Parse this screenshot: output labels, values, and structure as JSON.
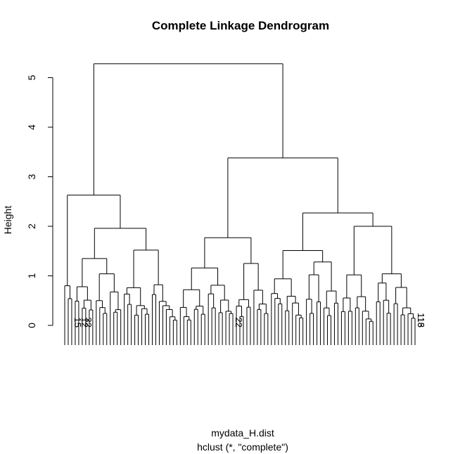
{
  "chart_data": {
    "type": "dendrogram",
    "title": "Complete Linkage Dendrogram",
    "ylabel": "Height",
    "xlabel": "mydata_H.dist",
    "sub": "hclust (*, \"complete\")",
    "ylim": [
      0,
      5.4
    ],
    "yticks": [
      0,
      1,
      2,
      3,
      4,
      5
    ],
    "merges": [
      {
        "name": "root",
        "height": 5.28,
        "children": [
          "A",
          "B"
        ]
      },
      {
        "name": "A",
        "height": 2.63,
        "children": [
          "A1",
          "A2"
        ]
      },
      {
        "name": "A1",
        "height": 0.8,
        "children": [],
        "leaves": 3
      },
      {
        "name": "A2",
        "height": 1.96,
        "children": [
          "A2a",
          "A2b"
        ]
      },
      {
        "name": "A2a",
        "height": 1.35,
        "children": [
          "A2a1",
          "A2a2"
        ]
      },
      {
        "name": "A2a1",
        "height": 0.78,
        "children": [],
        "leaves": 6
      },
      {
        "name": "A2a2",
        "height": 1.04,
        "children": [],
        "leaves": 8
      },
      {
        "name": "A2b",
        "height": 1.52,
        "children": [
          "A2b1",
          "A2b2"
        ]
      },
      {
        "name": "A2b1",
        "height": 0.76,
        "children": [],
        "leaves": 8
      },
      {
        "name": "A2b2",
        "height": 0.82,
        "children": [],
        "leaves": 8
      },
      {
        "name": "B",
        "height": 3.38,
        "children": [
          "B1",
          "B2"
        ]
      },
      {
        "name": "B1",
        "height": 1.77,
        "children": [
          "B1a",
          "B1b"
        ]
      },
      {
        "name": "B1a",
        "height": 1.16,
        "children": [
          "B1a1",
          "B1a2"
        ]
      },
      {
        "name": "B1a1",
        "height": 0.72,
        "children": [],
        "leaves": 8
      },
      {
        "name": "B1a2",
        "height": 0.81,
        "children": [],
        "leaves": 8
      },
      {
        "name": "B1b",
        "height": 1.25,
        "children": [
          "B1b1",
          "B1b2"
        ]
      },
      {
        "name": "B1b1",
        "height": 0.52,
        "children": [],
        "leaves": 5
      },
      {
        "name": "B1b2",
        "height": 0.71,
        "children": [],
        "leaves": 5
      },
      {
        "name": "B2",
        "height": 2.27,
        "children": [
          "B2a",
          "B2b"
        ]
      },
      {
        "name": "B2a",
        "height": 1.51,
        "children": [
          "B2a1",
          "B2a2"
        ]
      },
      {
        "name": "B2a1",
        "height": 0.94,
        "children": [],
        "leaves": 10
      },
      {
        "name": "B2a2",
        "height": 1.28,
        "children": [],
        "leaves": 10
      },
      {
        "name": "B2b",
        "height": 2.0,
        "children": [
          "B2b1",
          "B2b2"
        ]
      },
      {
        "name": "B2b1",
        "height": 1.02,
        "children": [],
        "leaves": 10
      },
      {
        "name": "B2b2",
        "height": 1.04,
        "children": [],
        "leaves": 12
      }
    ],
    "visible_leaf_labels": [
      "15",
      "12",
      "32",
      "22",
      "116",
      "113"
    ]
  }
}
